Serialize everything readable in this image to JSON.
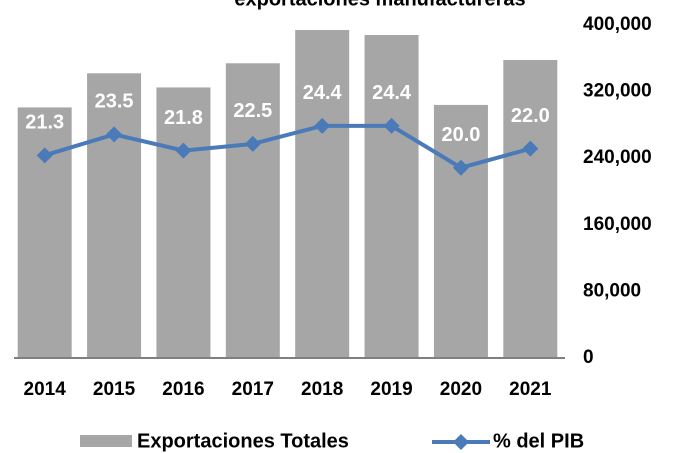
{
  "chart_data": {
    "type": "bar-line",
    "title": "exportaciones manufactureras",
    "categories": [
      "2014",
      "2015",
      "2016",
      "2017",
      "2018",
      "2019",
      "2020",
      "2021"
    ],
    "series": [
      {
        "name": "Exportaciones Totales",
        "type": "bar",
        "color": "#a6a6a6",
        "values": [
          301000,
          342000,
          325000,
          354000,
          394000,
          388000,
          304000,
          358000
        ]
      },
      {
        "name": "% del PIB",
        "type": "line",
        "axis": "y2",
        "color": "#4a7ab8",
        "values": [
          21.3,
          23.5,
          21.8,
          22.5,
          24.4,
          24.4,
          20.0,
          22.0
        ],
        "value_labels": [
          "21.3",
          "23.5",
          "21.8",
          "22.5",
          "24.4",
          "24.4",
          "20.0",
          "22.0"
        ]
      }
    ],
    "ylim": [
      0,
      400000
    ],
    "yticks": [
      {
        "value": 0,
        "label": "0"
      },
      {
        "value": 80000,
        "label": "80,000"
      },
      {
        "value": 160000,
        "label": "160,000"
      },
      {
        "value": 240000,
        "label": "240,000"
      },
      {
        "value": 320000,
        "label": "320,000"
      },
      {
        "value": 400000,
        "label": "400,000"
      }
    ],
    "y2lim": [
      0,
      35
    ],
    "legend": "bottom"
  }
}
